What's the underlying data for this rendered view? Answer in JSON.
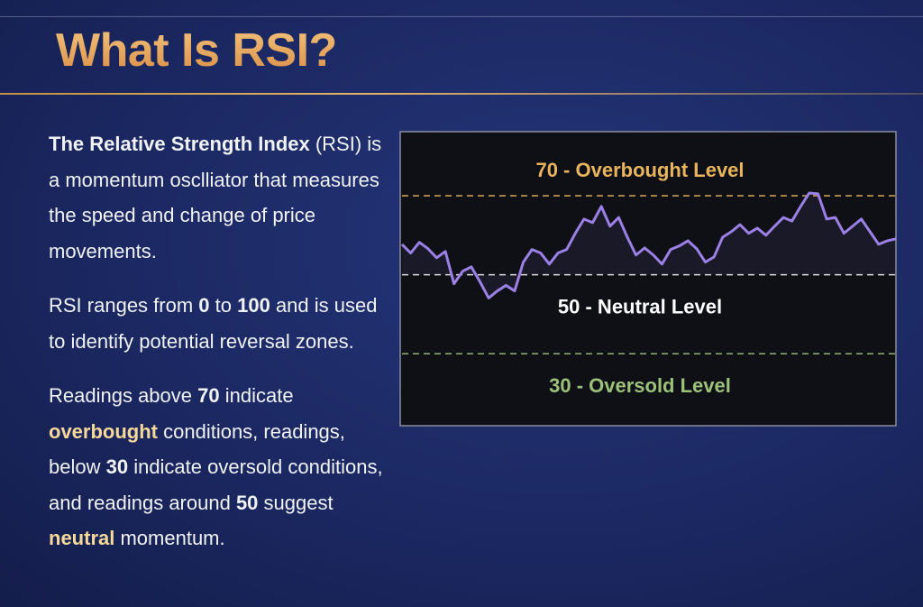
{
  "title": "What Is RSI?",
  "paragraphs": [
    [
      "The Relative Strength Index",
      " (RSI) is a momentum osclliator that measures the speed and change of price movements."
    ],
    [
      "RSI ranges from ",
      "0",
      " to ",
      "100",
      " and is used to identify potential reversal zones."
    ],
    [
      "Readings above ",
      "70",
      " indicate ",
      "overbought",
      " conditions, readings, below ",
      "30",
      " indicate oversold conditions, and readings around ",
      "50",
      " suggest ",
      "neutral",
      " momentum."
    ]
  ],
  "chart_data": {
    "type": "line",
    "color": "#9b80e6",
    "ylim": [
      12,
      86
    ],
    "values": [
      57.7,
      55.5,
      58.2,
      56.6,
      54.3,
      55.9,
      47.7,
      50.9,
      52.0,
      48.2,
      44.1,
      45.9,
      47.3,
      45.9,
      53.2,
      56.4,
      55.5,
      52.7,
      55.5,
      56.4,
      60.5,
      64.1,
      63.2,
      67.3,
      62.3,
      64.5,
      59.5,
      55.0,
      56.8,
      55.0,
      52.7,
      56.4,
      57.3,
      58.6,
      56.6,
      53.2,
      54.5,
      59.5,
      60.9,
      62.7,
      60.5,
      61.8,
      60.0,
      62.3,
      64.5,
      63.6,
      67.3,
      70.7,
      70.5,
      64.1,
      64.5,
      60.5,
      62.3,
      64.1,
      60.9,
      57.7,
      58.6,
      59.1
    ],
    "levels": [
      {
        "value": 70,
        "label": "70 - Overbought Level",
        "color": "#e9b55c"
      },
      {
        "value": 50,
        "label": "50 - Neutral Level",
        "color": "#ffffff"
      },
      {
        "value": 30,
        "label": "30 - Oversold Level",
        "color": "#9cc27a"
      }
    ]
  }
}
